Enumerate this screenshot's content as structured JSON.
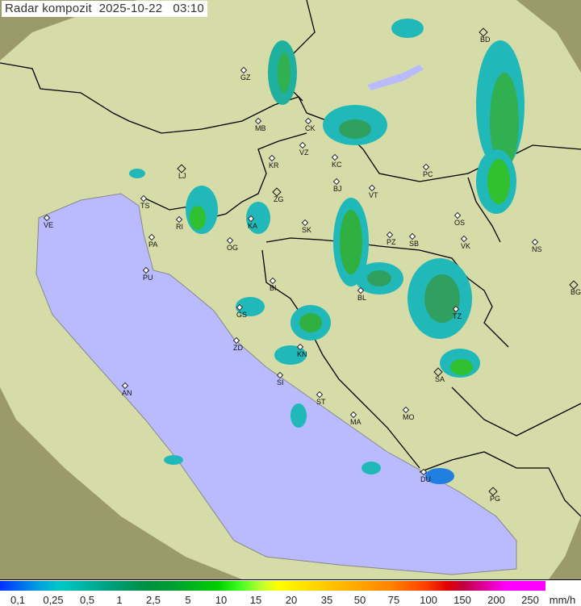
{
  "title": "Radar kompozit  2025-10-22   03:10",
  "colors": {
    "sea": "#babaff",
    "land": "#d6dca8",
    "outside": "#9a9a6a",
    "echo_light": "#20b8b8",
    "echo_mid": "#20a060",
    "echo_strong": "#30c030",
    "border": "#000000"
  },
  "cities": [
    {
      "code": "GZ"
    },
    {
      "code": "MB"
    },
    {
      "code": "CK"
    },
    {
      "code": "VZ"
    },
    {
      "code": "KR"
    },
    {
      "code": "KC"
    },
    {
      "code": "PC"
    },
    {
      "code": "LJ",
      "capital": true
    },
    {
      "code": "BD",
      "capital": true
    },
    {
      "code": "TS"
    },
    {
      "code": "ZG",
      "capital": true
    },
    {
      "code": "BJ"
    },
    {
      "code": "VT"
    },
    {
      "code": "VE"
    },
    {
      "code": "KA"
    },
    {
      "code": "SK"
    },
    {
      "code": "OS"
    },
    {
      "code": "RI"
    },
    {
      "code": "PA"
    },
    {
      "code": "OG"
    },
    {
      "code": "PZ"
    },
    {
      "code": "SB"
    },
    {
      "code": "VK"
    },
    {
      "code": "NS"
    },
    {
      "code": "PU"
    },
    {
      "code": "BG",
      "capital": true
    },
    {
      "code": "BI"
    },
    {
      "code": "BL"
    },
    {
      "code": "GS"
    },
    {
      "code": "TZ"
    },
    {
      "code": "ZD"
    },
    {
      "code": "KN"
    },
    {
      "code": "SA",
      "capital": true
    },
    {
      "code": "AN"
    },
    {
      "code": "SI"
    },
    {
      "code": "ST"
    },
    {
      "code": "MA"
    },
    {
      "code": "MO"
    },
    {
      "code": "DU"
    },
    {
      "code": "PG",
      "capital": true
    }
  ],
  "legend": {
    "labels": [
      "0,1",
      "0,25",
      "0,5",
      "1",
      "2,5",
      "5",
      "10",
      "15",
      "20",
      "35",
      "50",
      "75",
      "100",
      "150",
      "200",
      "250"
    ],
    "unit": "mm/h"
  }
}
